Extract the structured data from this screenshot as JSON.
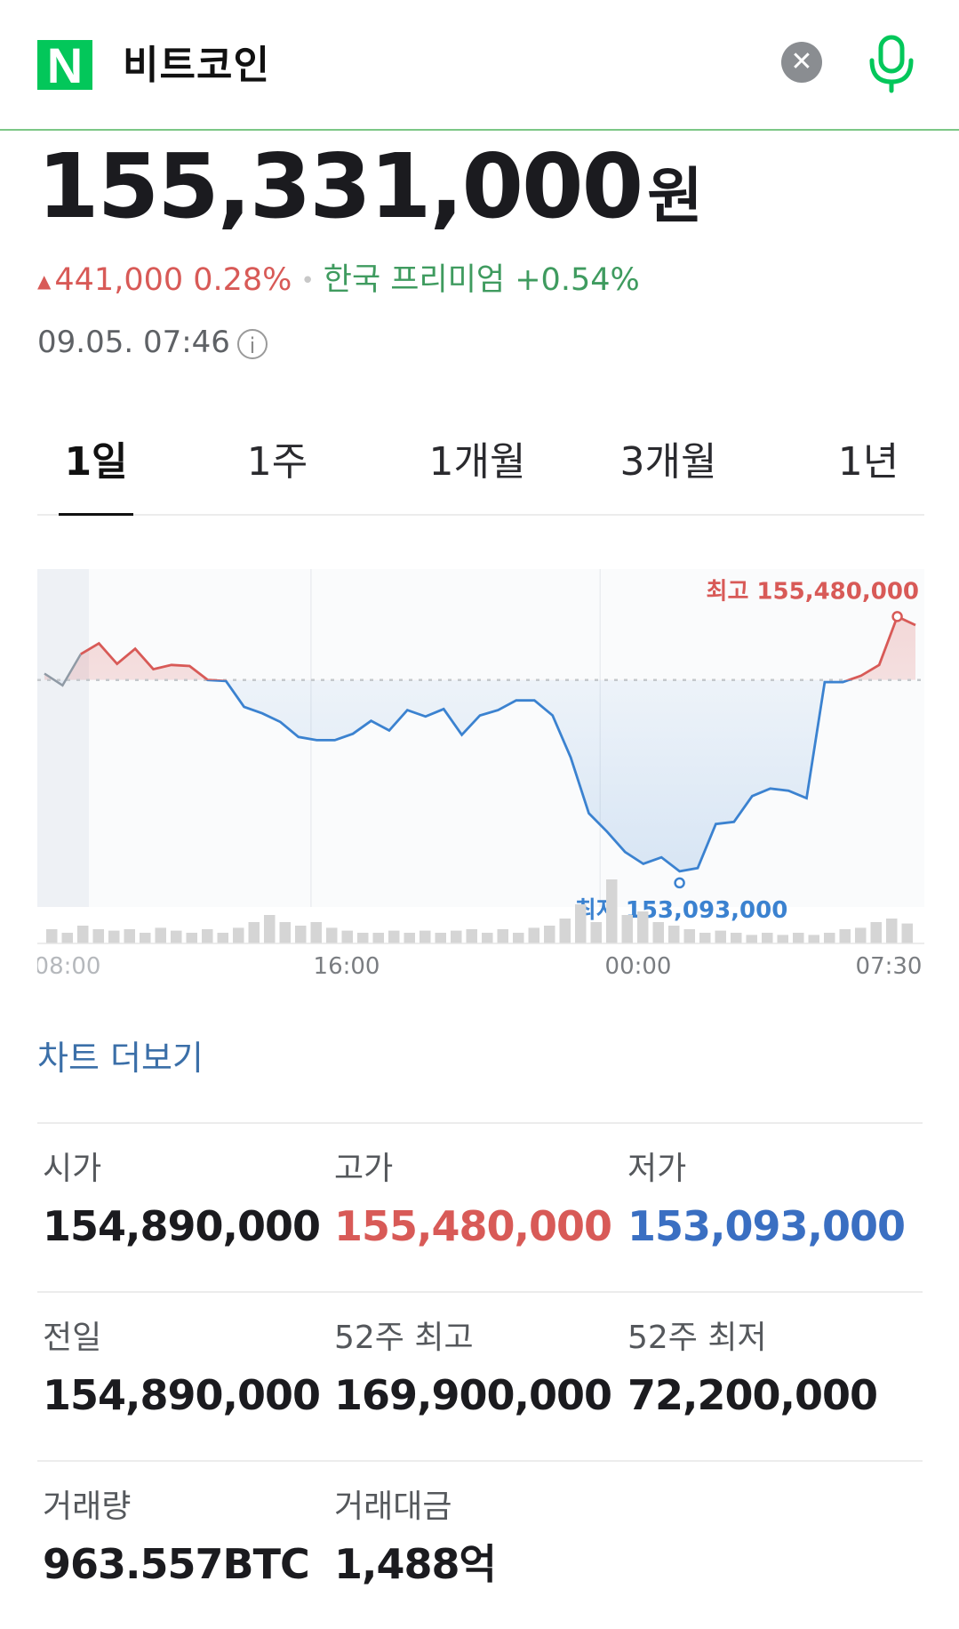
{
  "header": {
    "logo_letter": "N",
    "query": "비트코인",
    "clear_icon": "close-icon",
    "mic_icon": "microphone-icon",
    "accent_color": "#03c75a"
  },
  "price": {
    "value": "155,331,000",
    "unit": "원",
    "change_arrow": "▲",
    "change": "441,000 0.28%",
    "separator": "•",
    "premium": "한국 프리미엄 +0.54%",
    "timestamp": "09.05. 07:46",
    "info_icon": "i"
  },
  "tabs": [
    {
      "label": "1일",
      "active": true
    },
    {
      "label": "1주",
      "active": false
    },
    {
      "label": "1개월",
      "active": false
    },
    {
      "label": "3개월",
      "active": false
    },
    {
      "label": "1년",
      "active": false
    }
  ],
  "chart_data": {
    "type": "line",
    "baseline": 154890000,
    "x_ticks": [
      "08:00",
      "16:00",
      "00:00",
      "07:30"
    ],
    "high_label": "최고 155,480,000",
    "low_label": "최저 153,093,000",
    "high": 155480000,
    "low": 153093000,
    "colors": {
      "up": "#d85a57",
      "down": "#3b82d0",
      "prior": "#8f9aa5",
      "volume": "#d5d5d5"
    },
    "price_series": [
      154950000,
      154840000,
      155130000,
      155230000,
      155040000,
      155180000,
      154990000,
      155030000,
      155020000,
      154890000,
      154880000,
      154640000,
      154580000,
      154500000,
      154360000,
      154330000,
      154330000,
      154390000,
      154510000,
      154420000,
      154610000,
      154550000,
      154620000,
      154380000,
      154560000,
      154610000,
      154700000,
      154700000,
      154560000,
      154170000,
      153650000,
      153480000,
      153290000,
      153180000,
      153240000,
      153110000,
      153140000,
      153550000,
      153570000,
      153810000,
      153880000,
      153860000,
      153790000,
      154870000,
      154870000,
      154930000,
      155030000,
      155480000,
      155400000
    ],
    "volume_series": [
      0.2,
      0.15,
      0.25,
      0.2,
      0.18,
      0.2,
      0.15,
      0.22,
      0.18,
      0.15,
      0.2,
      0.15,
      0.22,
      0.3,
      0.4,
      0.3,
      0.25,
      0.3,
      0.22,
      0.18,
      0.15,
      0.15,
      0.18,
      0.15,
      0.18,
      0.15,
      0.18,
      0.2,
      0.15,
      0.2,
      0.15,
      0.22,
      0.25,
      0.35,
      0.55,
      0.3,
      0.9,
      0.4,
      0.45,
      0.3,
      0.25,
      0.2,
      0.15,
      0.18,
      0.15,
      0.12,
      0.15,
      0.12,
      0.15,
      0.12,
      0.15,
      0.2,
      0.22,
      0.3,
      0.35,
      0.28
    ]
  },
  "chart_more_link": "차트 더보기",
  "stats": [
    [
      {
        "label": "시가",
        "value": "154,890,000",
        "tone": ""
      },
      {
        "label": "고가",
        "value": "155,480,000",
        "tone": "red"
      },
      {
        "label": "저가",
        "value": "153,093,000",
        "tone": "blue"
      }
    ],
    [
      {
        "label": "전일",
        "value": "154,890,000",
        "tone": ""
      },
      {
        "label": "52주 최고",
        "value": "169,900,000",
        "tone": ""
      },
      {
        "label": "52주 최저",
        "value": "72,200,000",
        "tone": ""
      }
    ],
    [
      {
        "label": "거래량",
        "value": "963.557BTC",
        "tone": ""
      },
      {
        "label": "거래대금",
        "value": "1,488억",
        "tone": ""
      }
    ]
  ]
}
